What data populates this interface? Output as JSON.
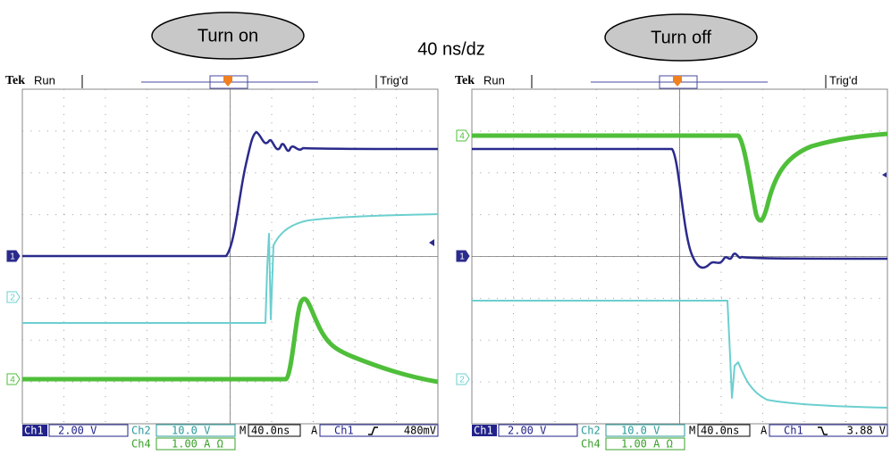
{
  "header": {
    "left_label": "Turn on",
    "right_label": "Turn off",
    "timebase": "40 ns/dz"
  },
  "scopes": [
    {
      "brand": "Tek",
      "status": "Run",
      "trigger_state": "Trig'd",
      "channel_markers": [
        "1",
        "2",
        "4"
      ],
      "readout": {
        "ch1": "Ch1",
        "ch1_scale": "2.00 V",
        "ch2": "Ch2",
        "ch2_scale": "10.0 V",
        "ch4": "Ch4",
        "ch4_scale": "1.00 A Ω",
        "m": "M",
        "timebase": "40.0ns",
        "a": "A",
        "trig_source": "Ch1",
        "trig_level": "480mV"
      }
    },
    {
      "brand": "Tek",
      "status": "Run",
      "trigger_state": "Trig'd",
      "channel_markers": [
        "4",
        "1",
        "2"
      ],
      "readout": {
        "ch1": "Ch1",
        "ch1_scale": "2.00 V",
        "ch2": "Ch2",
        "ch2_scale": "10.0 V",
        "ch4": "Ch4",
        "ch4_scale": "1.00 A Ω",
        "m": "M",
        "timebase": "40.0ns",
        "a": "A",
        "trig_source": "Ch1",
        "trig_level": "3.88 V"
      }
    }
  ]
}
